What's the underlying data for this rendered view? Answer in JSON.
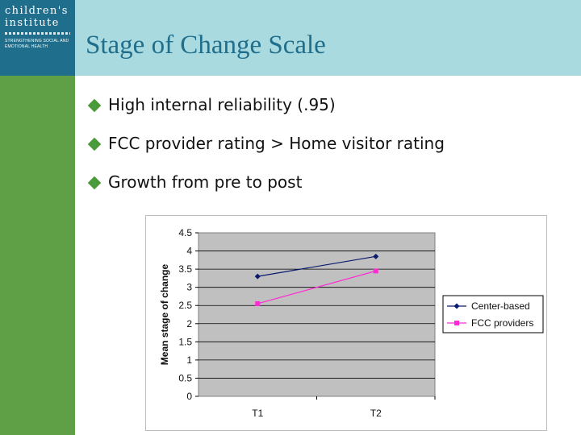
{
  "logo": {
    "line1": "children's",
    "line2": "institute",
    "tagline": "Strengthening social and emotional health"
  },
  "title": "Stage of Change Scale",
  "bullets": [
    "High internal reliability (.95)",
    "FCC provider rating > Home visitor rating",
    "Growth from pre to post"
  ],
  "colors": {
    "header_band": "#a9dae0",
    "logo_bg": "#1f6e8c",
    "side_bar": "#5fa046",
    "title": "#1f6e8c",
    "bullet_icon": "#4a9a3a",
    "plot_bg": "#c0c0c0"
  },
  "chart_data": {
    "type": "line",
    "categories": [
      "T1",
      "T2"
    ],
    "series": [
      {
        "name": "Center-based",
        "values": [
          3.3,
          3.85
        ],
        "color": "#0a1a6e",
        "marker": "diamond"
      },
      {
        "name": "FCC providers",
        "values": [
          2.55,
          3.45
        ],
        "color": "#ff2ad4",
        "marker": "square"
      }
    ],
    "ylabel": "Mean stage of change",
    "xlabel": "",
    "ylim": [
      0,
      4.5
    ],
    "yticks": [
      "0",
      "0.5",
      "1",
      "1.5",
      "2",
      "2.5",
      "3",
      "3.5",
      "4",
      "4.5"
    ],
    "grid": true,
    "legend_position": "right"
  }
}
